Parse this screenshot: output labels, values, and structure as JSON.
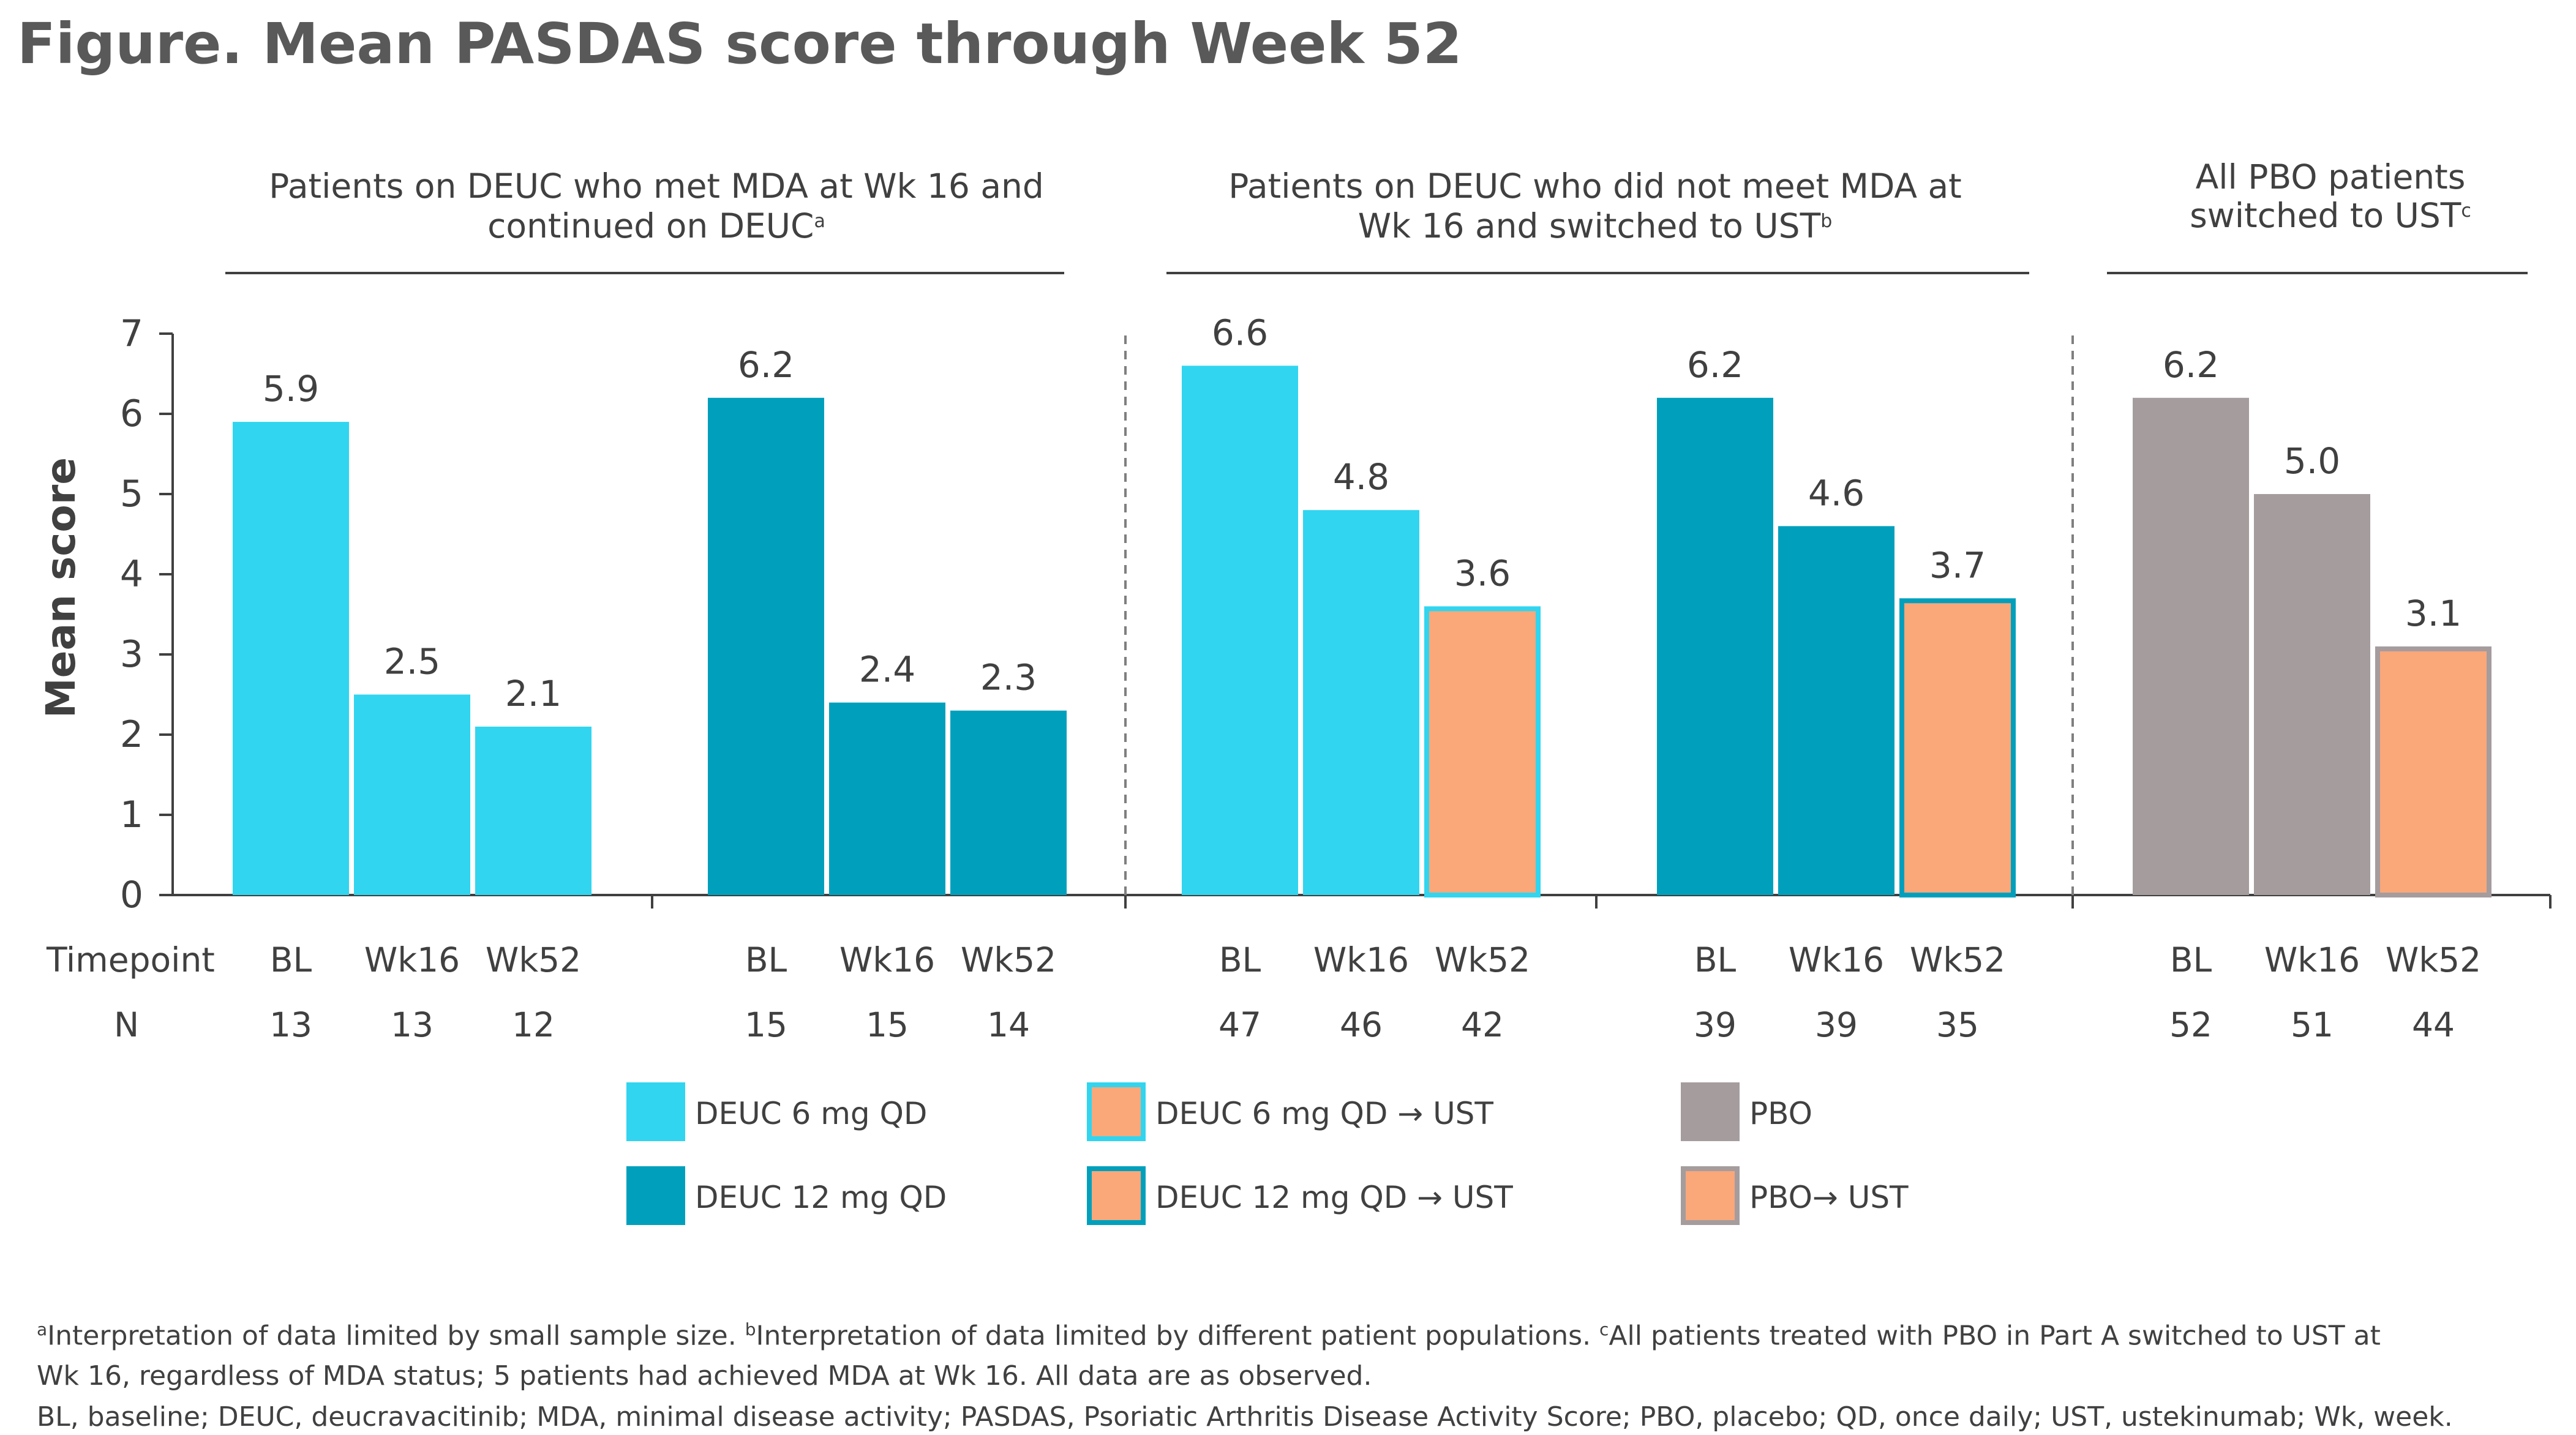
{
  "title": "Figure. Mean PASDAS score through Week 52",
  "colors": {
    "deuc6": "#31D5EF",
    "deuc12": "#00A0BC",
    "pbo": "#A59C9E",
    "ust": "#FAA77A"
  },
  "chart_data": {
    "type": "bar",
    "ylabel": "Mean score",
    "ylim": [
      0,
      7
    ],
    "yticks": [
      0,
      1,
      2,
      3,
      4,
      5,
      6,
      7
    ],
    "row_labels": {
      "timepoint": "Timepoint",
      "n": "N"
    },
    "groups": [
      {
        "id": "g1",
        "header_lines": [
          "Patients on DEUC who met MDA at Wk 16 and",
          "continued on DEUC"
        ],
        "header_sup": "a"
      },
      {
        "id": "g2",
        "header_lines": [
          "Patients on DEUC who did not meet MDA at",
          "Wk 16 and switched to UST"
        ],
        "header_sup": "b"
      },
      {
        "id": "g3",
        "header_lines": [
          "All PBO patients",
          "switched to UST"
        ],
        "header_sup": "c"
      }
    ],
    "clusters": [
      {
        "group": "g1",
        "bars": [
          {
            "timepoint": "BL",
            "value": 5.9,
            "label": "5.9",
            "n": "13",
            "series": "deuc6"
          },
          {
            "timepoint": "Wk16",
            "value": 2.5,
            "label": "2.5",
            "n": "13",
            "series": "deuc6"
          },
          {
            "timepoint": "Wk52",
            "value": 2.1,
            "label": "2.1",
            "n": "12",
            "series": "deuc6"
          }
        ]
      },
      {
        "group": "g1",
        "bars": [
          {
            "timepoint": "BL",
            "value": 6.2,
            "label": "6.2",
            "n": "15",
            "series": "deuc12"
          },
          {
            "timepoint": "Wk16",
            "value": 2.4,
            "label": "2.4",
            "n": "15",
            "series": "deuc12"
          },
          {
            "timepoint": "Wk52",
            "value": 2.3,
            "label": "2.3",
            "n": "14",
            "series": "deuc12"
          }
        ]
      },
      {
        "group": "g2",
        "bars": [
          {
            "timepoint": "BL",
            "value": 6.6,
            "label": "6.6",
            "n": "47",
            "series": "deuc6"
          },
          {
            "timepoint": "Wk16",
            "value": 4.8,
            "label": "4.8",
            "n": "46",
            "series": "deuc6"
          },
          {
            "timepoint": "Wk52",
            "value": 3.6,
            "label": "3.6",
            "n": "42",
            "series": "deuc6_ust"
          }
        ]
      },
      {
        "group": "g2",
        "bars": [
          {
            "timepoint": "BL",
            "value": 6.2,
            "label": "6.2",
            "n": "39",
            "series": "deuc12"
          },
          {
            "timepoint": "Wk16",
            "value": 4.6,
            "label": "4.6",
            "n": "39",
            "series": "deuc12"
          },
          {
            "timepoint": "Wk52",
            "value": 3.7,
            "label": "3.7",
            "n": "35",
            "series": "deuc12_ust"
          }
        ]
      },
      {
        "group": "g3",
        "bars": [
          {
            "timepoint": "BL",
            "value": 6.2,
            "label": "6.2",
            "n": "52",
            "series": "pbo"
          },
          {
            "timepoint": "Wk16",
            "value": 5.0,
            "label": "5.0",
            "n": "51",
            "series": "pbo"
          },
          {
            "timepoint": "Wk52",
            "value": 3.1,
            "label": "3.1",
            "n": "44",
            "series": "pbo_ust"
          }
        ]
      }
    ],
    "series": [
      {
        "id": "deuc6",
        "name": "DEUC 6 mg QD",
        "fill": "#31D5EF",
        "stroke": "#31D5EF"
      },
      {
        "id": "deuc12",
        "name": "DEUC 12 mg QD",
        "fill": "#00A0BC",
        "stroke": "#00A0BC"
      },
      {
        "id": "deuc6_ust",
        "name": "DEUC 6 mg QD →  UST",
        "fill": "#FAA77A",
        "stroke": "#31D5EF"
      },
      {
        "id": "deuc12_ust",
        "name": "DEUC 12 mg QD →  UST",
        "fill": "#FAA77A",
        "stroke": "#00A0BC"
      },
      {
        "id": "pbo",
        "name": "PBO",
        "fill": "#A59C9E",
        "stroke": "#A59C9E"
      },
      {
        "id": "pbo_ust",
        "name": "PBO→  UST",
        "fill": "#FAA77A",
        "stroke": "#A59C9E"
      }
    ],
    "legend_order": [
      "deuc6",
      "deuc12",
      "deuc6_ust",
      "deuc12_ust",
      "pbo",
      "pbo_ust"
    ]
  },
  "footnotes": {
    "line1_parts": [
      {
        "sup": "a",
        "text": "Interpretation of data limited by small sample size. "
      },
      {
        "sup": "b",
        "text": "Interpretation of data limited by different patient populations. "
      },
      {
        "sup": "c",
        "text": "All patients treated with PBO in Part A switched to UST at"
      }
    ],
    "line2": "Wk 16, regardless of MDA status; 5 patients had achieved MDA at Wk 16. All data are as observed.",
    "line3": "BL, baseline; DEUC, deucravacitinib; MDA, minimal disease activity; PASDAS, Psoriatic Arthritis Disease Activity Score; PBO, placebo; QD, once daily; UST, ustekinumab; Wk, week."
  }
}
